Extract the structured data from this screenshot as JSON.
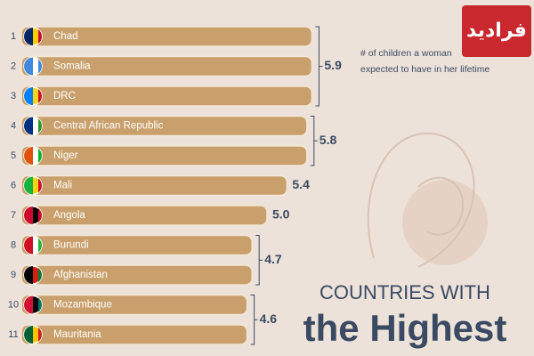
{
  "chart_data": {
    "type": "bar",
    "title": [
      "COUNTRIES WITH",
      "the Highest"
    ],
    "annotation": [
      "# of children a woman",
      "expected to have in her lifetime"
    ],
    "logo": "فرادید",
    "color": "#c9a06c",
    "xlim": [
      0,
      6
    ],
    "groups": [
      {
        "value": 5.9,
        "rows": [
          {
            "rank": 1,
            "name": "Chad"
          },
          {
            "rank": 2,
            "name": "Somalia"
          },
          {
            "rank": 3,
            "name": "DRC"
          }
        ]
      },
      {
        "value": 5.8,
        "rows": [
          {
            "rank": 4,
            "name": "Central African Republic"
          },
          {
            "rank": 5,
            "name": "Niger"
          }
        ]
      },
      {
        "value": 5.4,
        "rows": [
          {
            "rank": 6,
            "name": "Mali"
          }
        ]
      },
      {
        "value": 5,
        "value_label": "5.0",
        "rows": [
          {
            "rank": 7,
            "name": "Angola"
          }
        ]
      },
      {
        "value": 4.7,
        "rows": [
          {
            "rank": 8,
            "name": "Burundi"
          },
          {
            "rank": 9,
            "name": "Afghanistan"
          }
        ]
      },
      {
        "value": 4.6,
        "rows": [
          {
            "rank": 10,
            "name": "Mozambique"
          },
          {
            "rank": 11,
            "name": "Mauritania"
          }
        ]
      }
    ]
  }
}
